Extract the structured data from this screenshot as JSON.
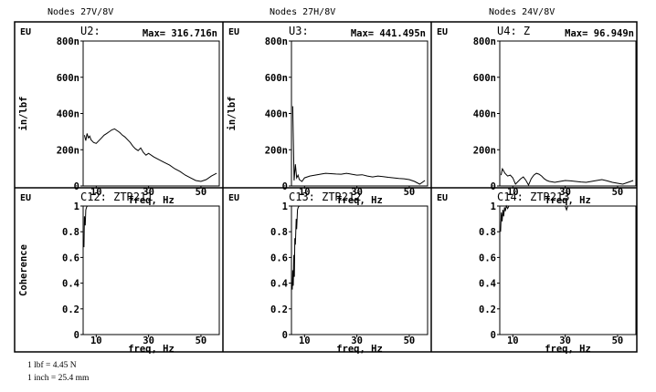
{
  "column_titles": [
    "Nodes 27V/8V",
    "Nodes 27H/8V",
    "Nodes 24V/8V"
  ],
  "footnotes": [
    "1 lbf = 4.45 N",
    "1 inch = 25.4 mm"
  ],
  "chart_data": [
    {
      "type": "line",
      "unit_label": "EU",
      "title": "U2:",
      "max_label": "Max= 316.716n",
      "xlabel": "freq, Hz",
      "ylabel": "in/lbf",
      "xlim": [
        5,
        57
      ],
      "ylim": [
        0,
        800
      ],
      "x_ticks": [
        10,
        30,
        50
      ],
      "y_ticks": [
        0,
        200,
        400,
        600,
        800
      ],
      "y_tick_labels": [
        "0",
        "200n",
        "400n",
        "600n",
        "800n"
      ],
      "series": [
        {
          "x": [
            5.5,
            6,
            6.5,
            7,
            7.5,
            8,
            9,
            10,
            11,
            12,
            13,
            14,
            15,
            16,
            17,
            18,
            19,
            20,
            21,
            22,
            23,
            24,
            25,
            26,
            27,
            28,
            29,
            30,
            32,
            34,
            36,
            38,
            40,
            42,
            44,
            46,
            48,
            50,
            52,
            54,
            56
          ],
          "y": [
            280,
            250,
            290,
            265,
            275,
            255,
            240,
            235,
            250,
            265,
            280,
            290,
            300,
            310,
            315,
            305,
            295,
            280,
            270,
            255,
            240,
            220,
            205,
            195,
            210,
            185,
            170,
            180,
            160,
            145,
            130,
            115,
            95,
            80,
            60,
            45,
            30,
            25,
            35,
            55,
            70
          ]
        }
      ]
    },
    {
      "type": "line",
      "unit_label": "EU",
      "title": "U3:",
      "max_label": "Max= 441.495n",
      "xlabel": "freq, Hz",
      "ylabel": "in/lbf",
      "xlim": [
        5,
        57
      ],
      "ylim": [
        0,
        800
      ],
      "x_ticks": [
        10,
        30,
        50
      ],
      "y_ticks": [
        0,
        200,
        400,
        600,
        800
      ],
      "y_tick_labels": [
        "0",
        "200n",
        "400n",
        "600n",
        "800n"
      ],
      "series": [
        {
          "x": [
            5.5,
            6,
            6.5,
            7,
            7.5,
            8,
            9,
            10,
            12,
            14,
            16,
            18,
            20,
            22,
            24,
            26,
            28,
            30,
            32,
            34,
            36,
            38,
            40,
            42,
            44,
            46,
            48,
            50,
            52,
            54,
            56
          ],
          "y": [
            440,
            30,
            120,
            45,
            60,
            35,
            25,
            45,
            55,
            60,
            65,
            70,
            68,
            66,
            65,
            70,
            65,
            60,
            62,
            55,
            50,
            55,
            52,
            48,
            45,
            42,
            40,
            35,
            25,
            10,
            30
          ]
        }
      ]
    },
    {
      "type": "line",
      "unit_label": "EU",
      "title": "U4: Z",
      "max_label": "Max= 96.949n",
      "xlabel": "freq, Hz",
      "ylabel": "",
      "xlim": [
        5,
        57
      ],
      "ylim": [
        0,
        800
      ],
      "x_ticks": [
        10,
        30,
        50
      ],
      "y_ticks": [
        0,
        200,
        400,
        600,
        800
      ],
      "y_tick_labels": [
        "0",
        "200n",
        "400n",
        "600n",
        "800n"
      ],
      "series": [
        {
          "x": [
            5.5,
            6,
            7,
            8,
            9,
            10,
            11,
            12,
            13,
            14,
            15,
            16,
            17,
            18,
            19,
            20,
            21,
            22,
            23,
            24,
            26,
            28,
            30,
            32,
            34,
            36,
            38,
            40,
            42,
            44,
            46,
            48,
            50,
            52,
            54,
            56
          ],
          "y": [
            60,
            95,
            70,
            55,
            60,
            45,
            10,
            25,
            40,
            50,
            30,
            5,
            40,
            60,
            70,
            65,
            55,
            40,
            30,
            25,
            20,
            25,
            30,
            28,
            25,
            22,
            20,
            25,
            30,
            35,
            28,
            20,
            15,
            10,
            20,
            30
          ]
        }
      ]
    },
    {
      "type": "line",
      "unit_label": "EU",
      "title": "C12: ZTR211",
      "xlabel": "freq, Hz",
      "ylabel": "Coherence",
      "xlim": [
        5,
        57
      ],
      "ylim": [
        0,
        1
      ],
      "x_ticks": [
        10,
        30,
        50
      ],
      "y_ticks": [
        0,
        0.2,
        0.4,
        0.6,
        0.8,
        1
      ],
      "y_tick_labels": [
        "0",
        "0.2",
        "0.4",
        "0.6",
        "0.8",
        "1"
      ],
      "series": [
        {
          "x": [
            5.3,
            5.5,
            5.8,
            6.0,
            6.3,
            6.6,
            7,
            8,
            10,
            20,
            30,
            40,
            50,
            56
          ],
          "y": [
            0.68,
            0.92,
            0.85,
            0.97,
            0.99,
            1.0,
            1.0,
            1.0,
            1.0,
            1.0,
            1.0,
            1.0,
            1.0,
            1.0
          ]
        }
      ]
    },
    {
      "type": "line",
      "unit_label": "EU",
      "title": "C13: ZTR212",
      "xlabel": "freq, Hz",
      "ylabel": "",
      "xlim": [
        5,
        57
      ],
      "ylim": [
        0,
        1
      ],
      "x_ticks": [
        10,
        30,
        50
      ],
      "y_ticks": [
        0,
        0.2,
        0.4,
        0.6,
        0.8,
        1
      ],
      "y_tick_labels": [
        "0",
        "0.2",
        "0.4",
        "0.6",
        "0.8",
        "1"
      ],
      "series": [
        {
          "x": [
            5.3,
            5.5,
            5.7,
            5.9,
            6.1,
            6.3,
            6.5,
            6.8,
            7.0,
            7.3,
            7.6,
            8,
            9,
            10,
            20,
            30,
            40,
            50,
            56
          ],
          "y": [
            0.35,
            0.5,
            0.38,
            0.62,
            0.45,
            0.75,
            0.7,
            0.9,
            0.82,
            0.97,
            0.99,
            1.0,
            1.0,
            1.0,
            1.0,
            1.0,
            1.0,
            1.0,
            1.0
          ]
        }
      ]
    },
    {
      "type": "line",
      "unit_label": "EU",
      "title": "C14: ZTR213",
      "xlabel": "freq, Hz",
      "ylabel": "",
      "xlim": [
        5,
        57
      ],
      "ylim": [
        0,
        1
      ],
      "x_ticks": [
        10,
        30,
        50
      ],
      "y_ticks": [
        0,
        0.2,
        0.4,
        0.6,
        0.8,
        1
      ],
      "y_tick_labels": [
        "0",
        "0.2",
        "0.4",
        "0.6",
        "0.8",
        "1"
      ],
      "series": [
        {
          "x": [
            5.3,
            5.6,
            5.9,
            6.2,
            6.5,
            6.8,
            7.1,
            7.5,
            8,
            8.5,
            9,
            10,
            15,
            20,
            25,
            30,
            30.5,
            31,
            35,
            40,
            50,
            56
          ],
          "y": [
            0.8,
            0.95,
            0.88,
            0.97,
            0.92,
            0.99,
            0.96,
            1.0,
            0.98,
            1.0,
            1.0,
            1.0,
            1.0,
            1.0,
            1.0,
            1.0,
            0.97,
            1.0,
            1.0,
            1.0,
            1.0,
            1.0
          ]
        }
      ]
    }
  ]
}
